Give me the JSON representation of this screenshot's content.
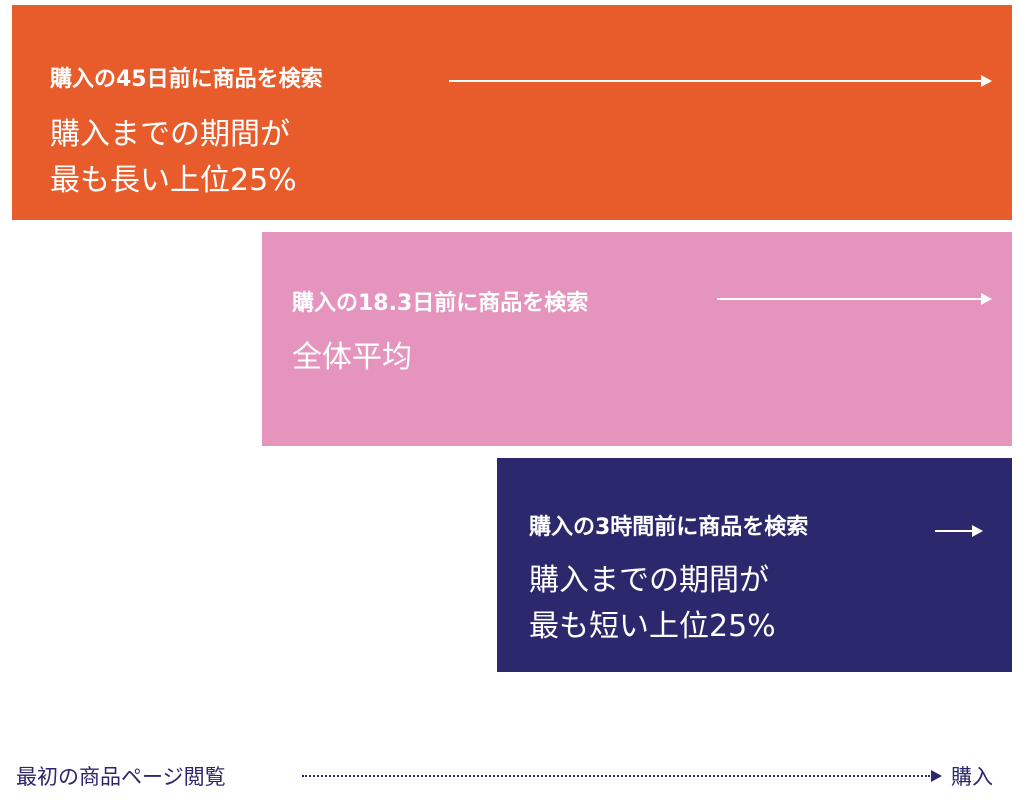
{
  "segments": [
    {
      "headline": "購入の45日前に商品を検索",
      "line1": "購入までの期間が",
      "line2": "最も長い上位25%",
      "color": "#e85c2c"
    },
    {
      "headline": "購入の18.3日前に商品を検索",
      "line1": "全体平均",
      "color": "#e594bd"
    },
    {
      "headline": "購入の3時間前に商品を検索",
      "line1": "購入までの期間が",
      "line2": "最も短い上位25%",
      "color": "#2c286d"
    }
  ],
  "timeline": {
    "start_label": "最初の商品ページ閲覧",
    "end_label": "購入",
    "color": "#2c286d"
  }
}
